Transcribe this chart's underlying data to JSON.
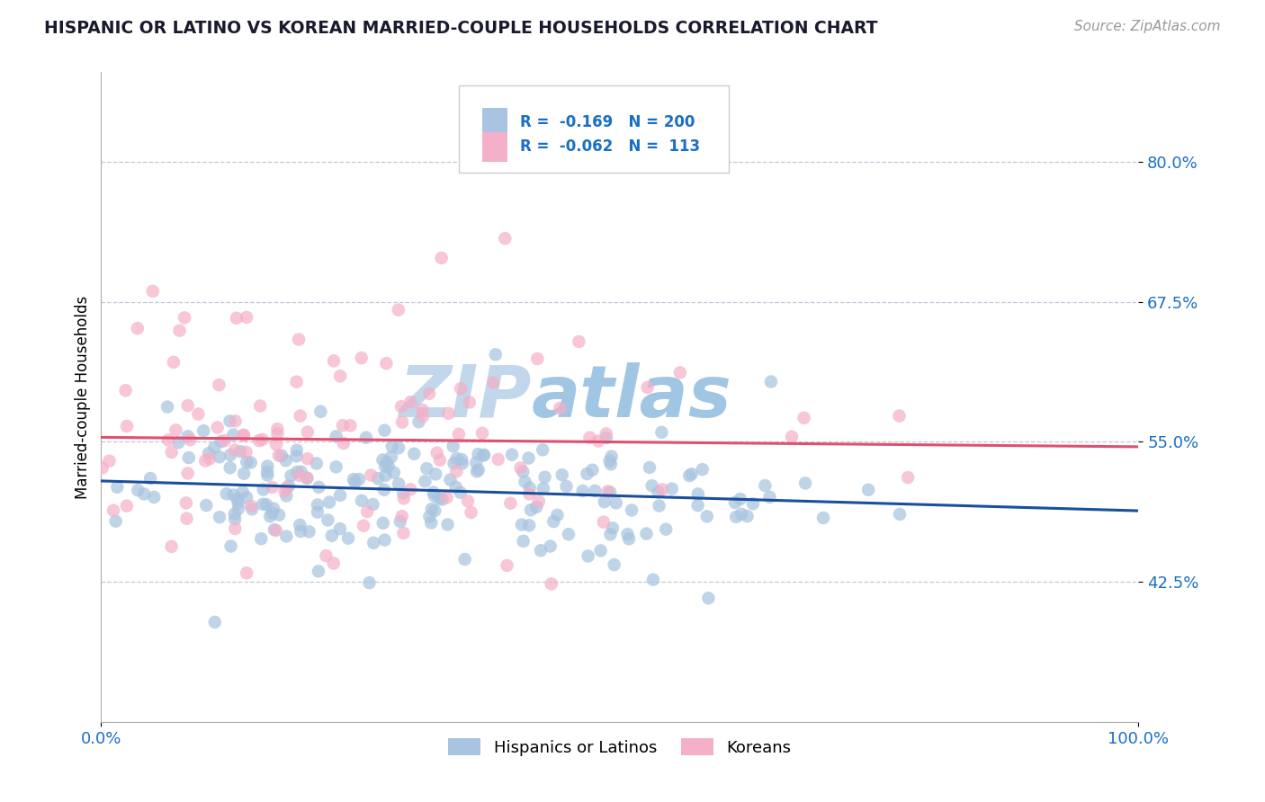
{
  "title": "HISPANIC OR LATINO VS KOREAN MARRIED-COUPLE HOUSEHOLDS CORRELATION CHART",
  "source": "Source: ZipAtlas.com",
  "ylabel": "Married-couple Households",
  "ytick_labels": [
    "42.5%",
    "55.0%",
    "67.5%",
    "80.0%"
  ],
  "ytick_values": [
    0.425,
    0.55,
    0.675,
    0.8
  ],
  "xrange": [
    0.0,
    1.0
  ],
  "yrange": [
    0.3,
    0.88
  ],
  "blue_R": -0.169,
  "blue_N": 200,
  "pink_R": -0.062,
  "pink_N": 113,
  "blue_color": "#a8c4e0",
  "pink_color": "#f4b0c8",
  "blue_line_color": "#1a4f9c",
  "pink_line_color": "#e05070",
  "legend_label_blue": "Hispanics or Latinos",
  "legend_label_pink": "Koreans",
  "watermark_color": "#cddff0",
  "title_color": "#1a1a2e",
  "axis_label_color": "#1a6fc4",
  "source_color": "#999999",
  "grid_color": "#c0c8d8",
  "spine_color": "#aaaaaa"
}
